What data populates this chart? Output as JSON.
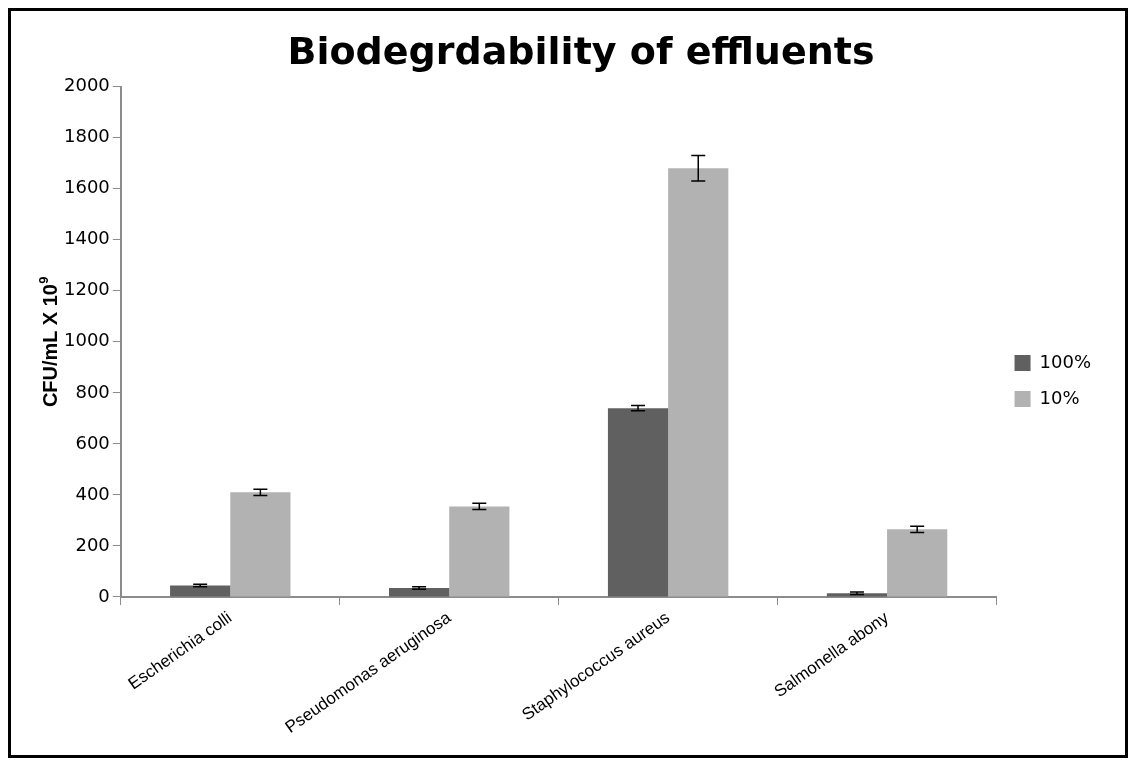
{
  "chart_data": {
    "type": "bar",
    "title": "Biodegrdability of effluents",
    "ylabel": "CFU/mL X 10$^{9}$",
    "categories": [
      "Escherichia colli",
      "Pseudomonas aeruginosa",
      "Staphylococcus aureus",
      "Salmonella abony"
    ],
    "series": [
      {
        "name": "100%",
        "color": "#606060",
        "values": [
          45,
          35,
          740,
          15
        ],
        "errors": [
          5,
          5,
          10,
          5
        ]
      },
      {
        "name": "10%",
        "color": "#b2b2b2",
        "values": [
          410,
          355,
          1680,
          265
        ],
        "errors": [
          12,
          12,
          50,
          12
        ]
      }
    ],
    "ylim": [
      0,
      2000
    ],
    "yticks": [
      0,
      200,
      400,
      600,
      800,
      1000,
      1200,
      1400,
      1600,
      1800,
      2000
    ],
    "legend": "right"
  }
}
